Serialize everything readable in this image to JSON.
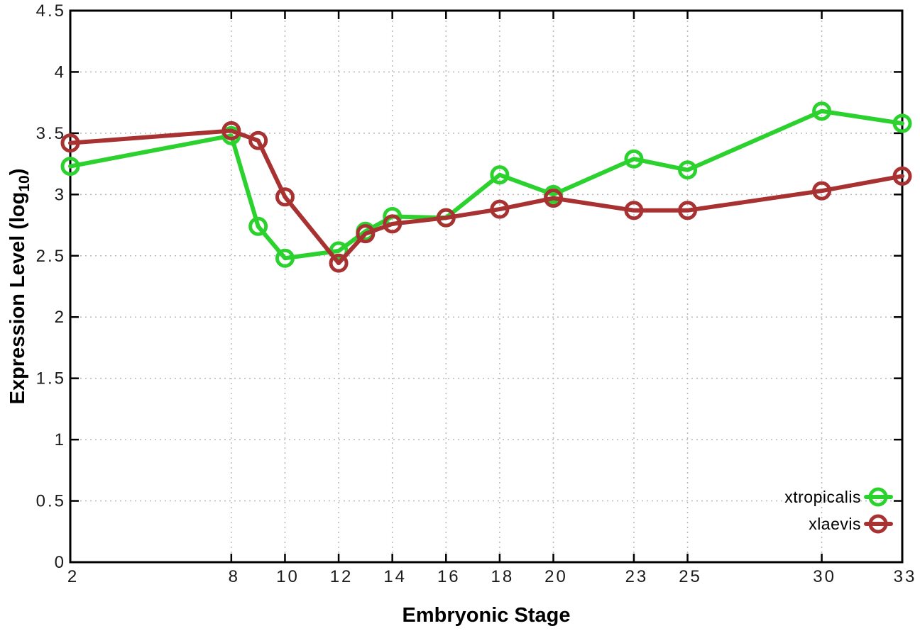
{
  "chart_data": {
    "type": "line",
    "title": "",
    "xlabel": "Embryonic Stage",
    "ylabel_main": "Expression Level (log",
    "ylabel_sub": "10",
    "ylabel_close": ")",
    "xlim": [
      2,
      33
    ],
    "ylim": [
      0,
      4.5
    ],
    "x_ticks": [
      2,
      8,
      10,
      12,
      14,
      16,
      18,
      20,
      23,
      25,
      30,
      33
    ],
    "y_ticks": [
      0,
      0.5,
      1,
      1.5,
      2,
      2.5,
      3,
      3.5,
      4,
      4.5
    ],
    "grid": true,
    "legend_position": "bottom-right",
    "series": [
      {
        "name": "xtropicalis",
        "color": "#2bd22e",
        "x": [
          2,
          8,
          9,
          10,
          12,
          13,
          14,
          16,
          18,
          20,
          23,
          25,
          30,
          33
        ],
        "values": [
          3.23,
          3.48,
          2.74,
          2.48,
          2.54,
          2.7,
          2.82,
          2.81,
          3.16,
          3.0,
          3.29,
          3.2,
          3.68,
          3.58
        ]
      },
      {
        "name": "xlaevis",
        "color": "#a83232",
        "x": [
          2,
          8,
          9,
          10,
          12,
          13,
          14,
          16,
          18,
          20,
          23,
          25,
          30,
          33
        ],
        "values": [
          3.42,
          3.52,
          3.44,
          2.98,
          2.44,
          2.68,
          2.76,
          2.81,
          2.88,
          2.97,
          2.87,
          2.87,
          3.03,
          3.15
        ]
      }
    ]
  },
  "colors": {
    "background": "#ffffff",
    "grid": "#b8b8b8",
    "axis": "#000000",
    "tick_text": "#1a1a1a"
  }
}
